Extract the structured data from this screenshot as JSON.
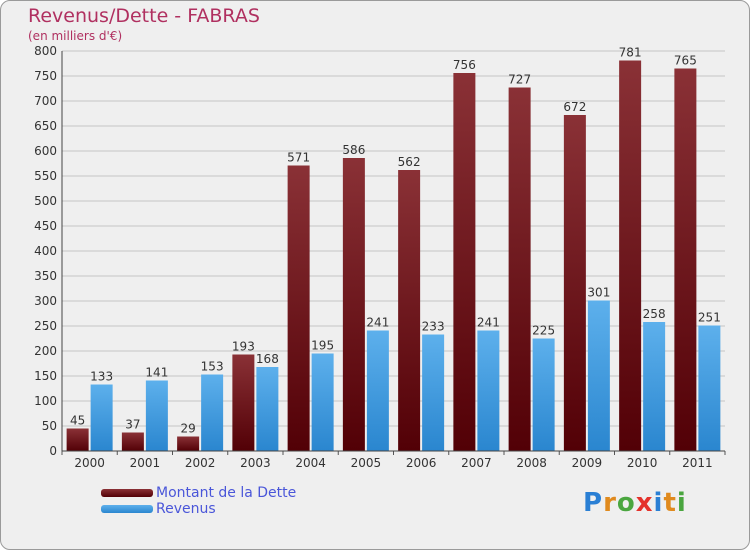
{
  "header": {
    "title": "Revenus/Dette - FABRAS",
    "subtitle": "(en milliers d'€)"
  },
  "logo": {
    "text": "Proxiti",
    "letter_colors": [
      "#2a7fd4",
      "#e08a1e",
      "#4aa63f",
      "#e4322b",
      "#2a7fd4",
      "#e08a1e",
      "#4aa63f"
    ]
  },
  "chart_data": {
    "type": "bar",
    "title": "Revenus/Dette - FABRAS",
    "subtitle": "(en milliers d'€)",
    "categories": [
      "2000",
      "2001",
      "2002",
      "2003",
      "2004",
      "2005",
      "2006",
      "2007",
      "2008",
      "2009",
      "2010",
      "2011"
    ],
    "series": [
      {
        "name": "Montant de la Dette",
        "color": "#7a1a1e",
        "values": [
          45,
          37,
          29,
          193,
          571,
          586,
          562,
          756,
          727,
          672,
          781,
          765
        ]
      },
      {
        "name": "Revenus",
        "color": "#3a9ae2",
        "values": [
          133,
          141,
          153,
          168,
          195,
          241,
          233,
          241,
          225,
          301,
          258,
          251
        ]
      }
    ],
    "yticks": [
      0,
      50,
      100,
      150,
      200,
      250,
      300,
      350,
      400,
      450,
      500,
      550,
      600,
      650,
      700,
      750,
      800
    ],
    "ylim": [
      0,
      800
    ],
    "grid": true,
    "legend_position": "bottom-left"
  }
}
